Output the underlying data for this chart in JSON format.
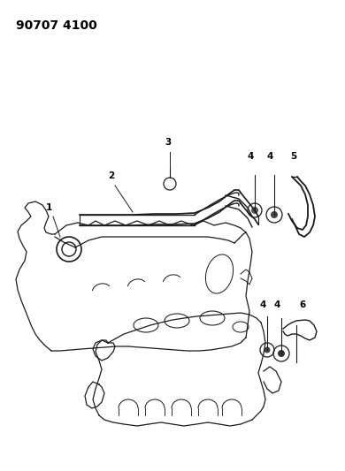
{
  "title": "90707 4100",
  "background_color": "#ffffff",
  "line_color": "#1a1a1a",
  "text_color": "#000000",
  "fig_width": 3.9,
  "fig_height": 5.33,
  "dpi": 100,
  "label_fontsize": 7.5
}
